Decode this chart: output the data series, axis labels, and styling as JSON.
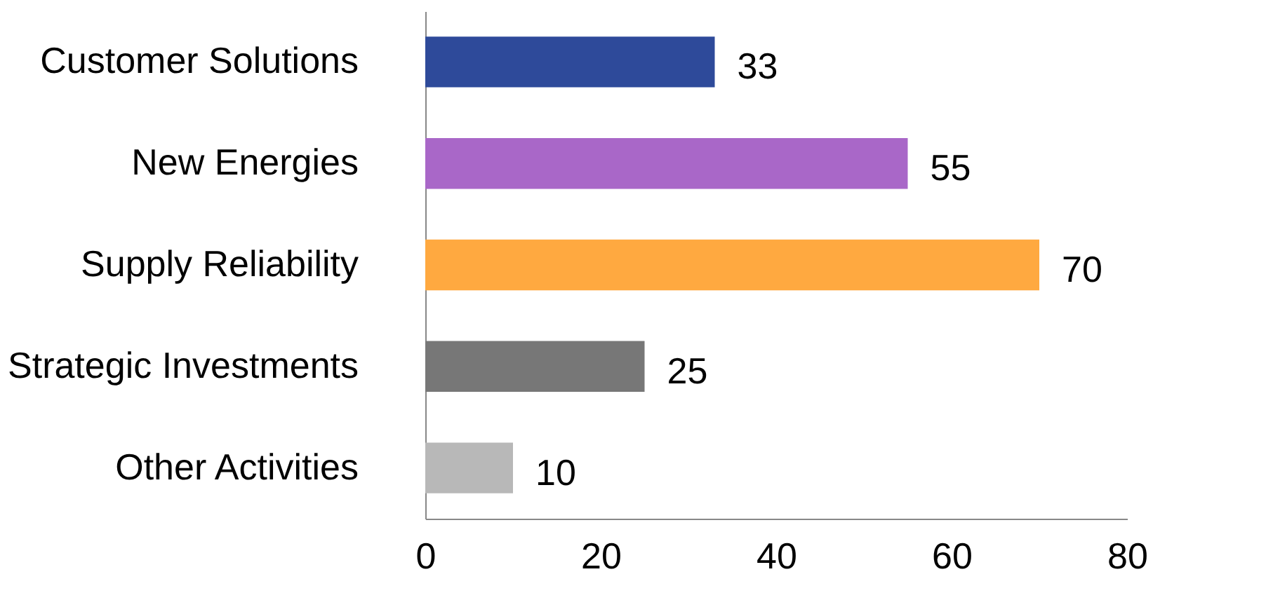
{
  "chart_data": {
    "type": "bar",
    "orientation": "horizontal",
    "categories": [
      "Customer Solutions",
      "New Energies",
      "Supply Reliability",
      "Strategic Investments",
      "Other Activities"
    ],
    "values": [
      33,
      55,
      70,
      25,
      10
    ],
    "colors": [
      "#2e4a9a",
      "#a967c8",
      "#ffa940",
      "#777777",
      "#b8b8b8"
    ],
    "xlim": [
      0,
      80
    ],
    "xticks": [
      0,
      20,
      40,
      60,
      80
    ],
    "data_labels": true,
    "grid": false
  }
}
